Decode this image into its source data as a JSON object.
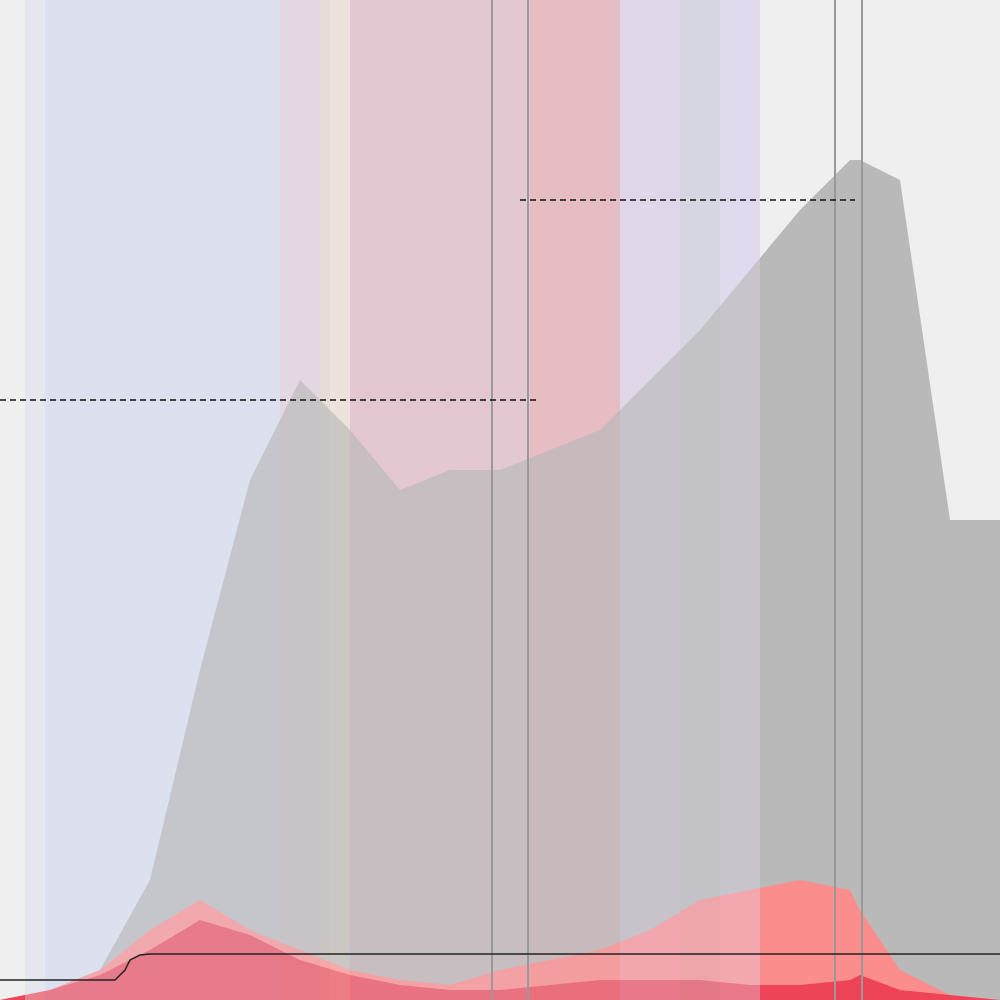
{
  "chart_data": {
    "type": "area",
    "title": "",
    "xlabel": "",
    "ylabel": "",
    "x": [
      0,
      5,
      10,
      15,
      20,
      25,
      30,
      35,
      40,
      45,
      50,
      55,
      60,
      65,
      70,
      75,
      80,
      85,
      86,
      90,
      95,
      100
    ],
    "xlim": [
      0,
      100
    ],
    "ylim": [
      0,
      100
    ],
    "grid": false,
    "legend": "none",
    "background_bands": [
      {
        "x0": 2.5,
        "x1": 4.5,
        "color": "#e6e7ef"
      },
      {
        "x0": 4.5,
        "x1": 28,
        "color": "#dde0ee"
      },
      {
        "x0": 28,
        "x1": 32,
        "color": "#e2d8e2"
      },
      {
        "x0": 32,
        "x1": 33,
        "color": "#e8dcd8"
      },
      {
        "x0": 33,
        "x1": 35,
        "color": "#ede2de"
      },
      {
        "x0": 35,
        "x1": 53,
        "color": "#e3c8d2"
      },
      {
        "x0": 53,
        "x1": 62,
        "color": "#e5bec3"
      },
      {
        "x0": 62,
        "x1": 68,
        "color": "#e0d8ec"
      },
      {
        "x0": 68,
        "x1": 72,
        "color": "#d6d6e2"
      },
      {
        "x0": 72,
        "x1": 76,
        "color": "#e1d9ee"
      }
    ],
    "series": [
      {
        "values": [
          0,
          1,
          3,
          12,
          33,
          52,
          62,
          57,
          51,
          53,
          53,
          55,
          57,
          62,
          67,
          73,
          79,
          84,
          84,
          82,
          48,
          48
        ],
        "color": "#b9b9b9",
        "opacity": 1
      },
      {
        "values": [
          0,
          1,
          3,
          7,
          10,
          7,
          5,
          3,
          2,
          1.5,
          3,
          4,
          5,
          7,
          10,
          11,
          12,
          11,
          9,
          3,
          0.5,
          0
        ],
        "color": "#ff8a8a",
        "opacity": 0.95
      },
      {
        "values": [
          0,
          1,
          2.5,
          5,
          8,
          6.5,
          4,
          2.5,
          1.5,
          1,
          1,
          1.5,
          2,
          2,
          2,
          1.5,
          1.5,
          2,
          2.5,
          1,
          0.5,
          0
        ],
        "color": "#e8334a",
        "opacity": 0.8
      }
    ],
    "step_line": {
      "x": [
        0,
        11.5,
        12.5,
        13,
        14,
        15,
        100
      ],
      "y": [
        2,
        2,
        3,
        4,
        4.5,
        4.6,
        4.6
      ],
      "color": "#222222"
    },
    "vertical_lines": [
      49.2,
      52.8,
      83.5,
      86.2
    ],
    "reference_lines": [
      {
        "y": 60,
        "x0": 0,
        "x1": 54,
        "dash": "6,4"
      },
      {
        "y": 80,
        "x0": 52,
        "x1": 85.5,
        "dash": "6,4"
      }
    ]
  }
}
